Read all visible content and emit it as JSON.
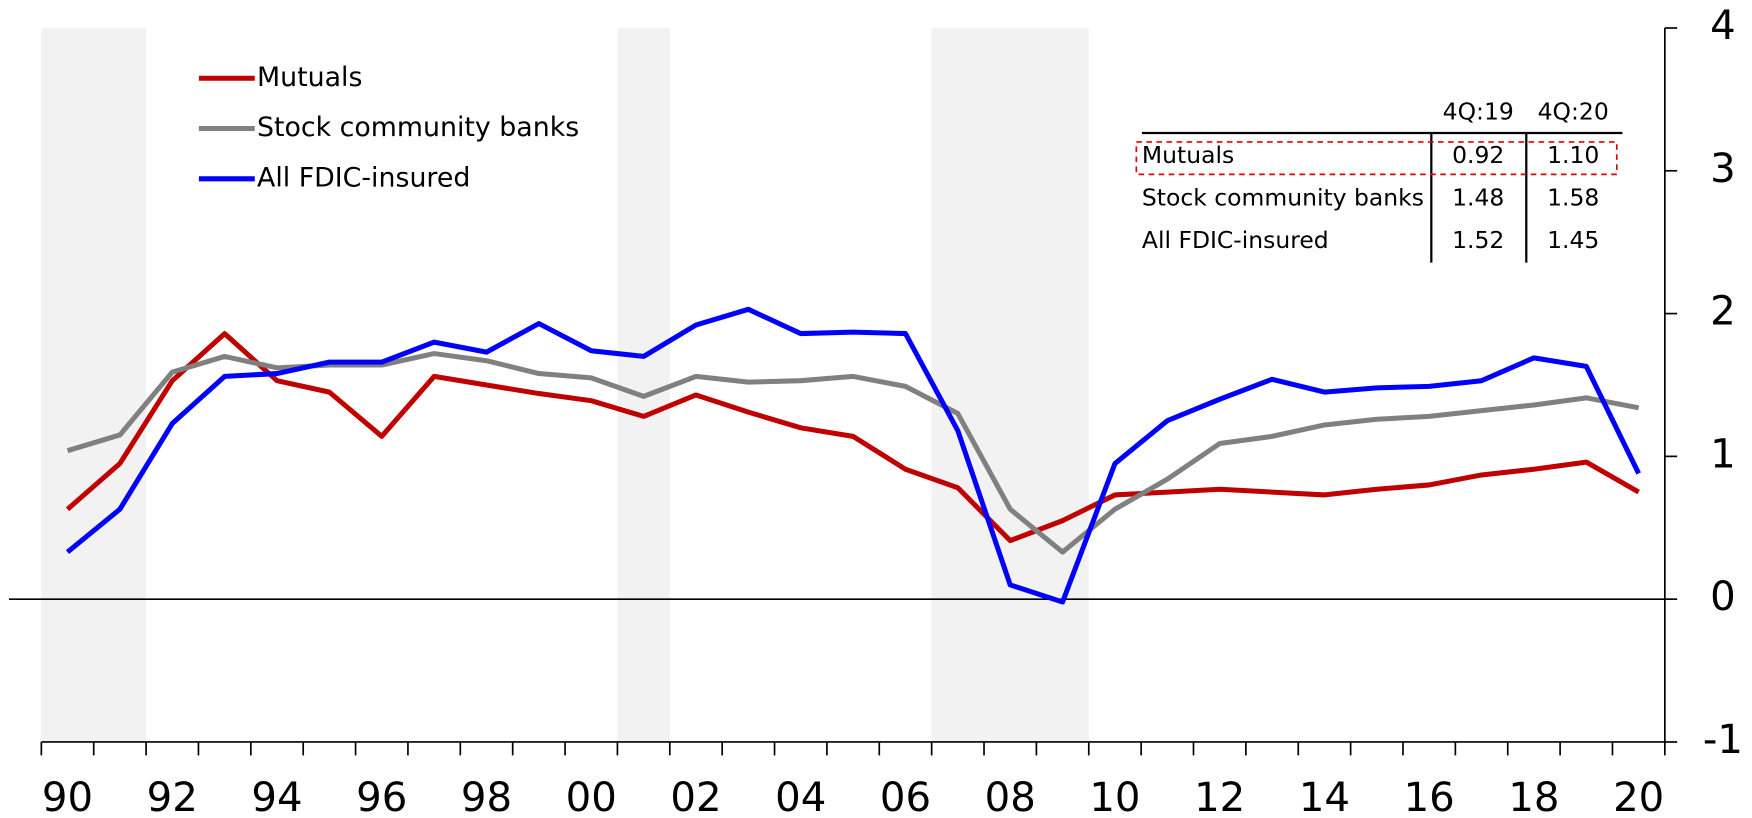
{
  "chart_data": {
    "type": "line",
    "categories": [
      "90",
      null,
      "92",
      null,
      "94",
      null,
      "96",
      null,
      "98",
      null,
      "00",
      null,
      "02",
      null,
      "04",
      null,
      "06",
      null,
      "08",
      null,
      "10",
      null,
      "12",
      null,
      "14",
      null,
      "16",
      null,
      "18",
      null,
      "20"
    ],
    "series": [
      {
        "name": "Mutuals",
        "color": "#c00000",
        "values": [
          0.63,
          0.95,
          1.53,
          1.86,
          1.53,
          1.45,
          1.14,
          1.56,
          1.5,
          1.44,
          1.39,
          1.28,
          1.43,
          1.31,
          1.2,
          1.14,
          0.91,
          0.78,
          0.41,
          0.55,
          0.73,
          0.75,
          0.77,
          0.75,
          0.73,
          0.77,
          0.8,
          0.87,
          0.91,
          0.96,
          0.75
        ]
      },
      {
        "name": "Stock community banks",
        "color": "#808080",
        "values": [
          1.04,
          1.15,
          1.59,
          1.7,
          1.62,
          1.64,
          1.64,
          1.72,
          1.67,
          1.58,
          1.55,
          1.42,
          1.56,
          1.52,
          1.53,
          1.56,
          1.49,
          1.3,
          0.63,
          0.33,
          0.63,
          0.84,
          1.09,
          1.14,
          1.22,
          1.26,
          1.28,
          1.32,
          1.36,
          1.41,
          1.34
        ]
      },
      {
        "name": "All FDIC-insured",
        "color": "#0000ff",
        "values": [
          0.33,
          0.63,
          1.23,
          1.56,
          1.58,
          1.66,
          1.66,
          1.8,
          1.73,
          1.93,
          1.74,
          1.7,
          1.92,
          2.03,
          1.86,
          1.87,
          1.86,
          1.18,
          0.1,
          -0.02,
          0.95,
          1.25,
          1.4,
          1.54,
          1.45,
          1.48,
          1.49,
          1.53,
          1.69,
          1.63,
          0.88
        ]
      }
    ],
    "ylim": [
      -1,
      4
    ],
    "yticks": [
      -1,
      0,
      1,
      2,
      3,
      4
    ],
    "legend": "upper left",
    "table": {
      "columns": [
        "4Q:19",
        "4Q:20"
      ],
      "rows": [
        {
          "label": "Mutuals",
          "cells": [
            "0.92",
            "1.10"
          ]
        },
        {
          "label": "Stock community banks",
          "cells": [
            "1.48",
            "1.58"
          ]
        },
        {
          "label": "All FDIC-insured",
          "cells": [
            "1.52",
            "1.45"
          ]
        }
      ]
    }
  }
}
